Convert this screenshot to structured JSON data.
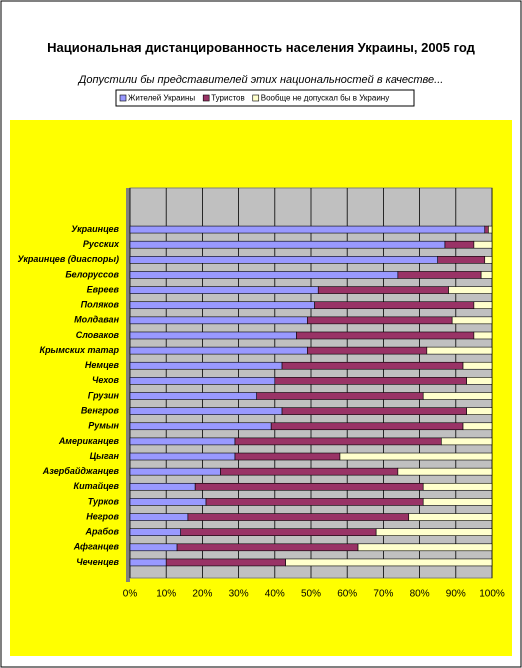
{
  "chart_data": {
    "type": "stacked-bar-horizontal-100",
    "title": "Национальная дистанцированность населения Украины, 2005 год",
    "subtitle": "Допустили бы представителей этих национальностей в качестве...",
    "categories": [
      "Украинцев",
      "Русских",
      "Украинцев (диаспоры)",
      "Белоруссов",
      "Евреев",
      "Поляков",
      "Молдаван",
      "Словаков",
      "Крымских татар",
      "Немцев",
      "Чехов",
      "Грузин",
      "Венгров",
      "Румын",
      "Американцев",
      "Цыган",
      "Азербайджанцев",
      "Китайцев",
      "Турков",
      "Негров",
      "Арабов",
      "Афганцев",
      "Чеченцев"
    ],
    "series": [
      {
        "name": "Жителей Украины",
        "color": "#9999ff",
        "values": [
          98,
          87,
          85,
          74,
          52,
          51,
          49,
          46,
          49,
          42,
          40,
          35,
          42,
          39,
          29,
          29,
          25,
          18,
          21,
          16,
          14,
          13,
          10
        ]
      },
      {
        "name": "Туристов",
        "color": "#993366",
        "values": [
          1,
          8,
          13,
          23,
          36,
          44,
          40,
          49,
          33,
          50,
          53,
          46,
          51,
          53,
          57,
          29,
          49,
          63,
          60,
          61,
          54,
          50,
          33
        ]
      },
      {
        "name": "Вообще не допускал бы в Украину",
        "color": "#ffffcc",
        "values": [
          1,
          5,
          2,
          3,
          12,
          5,
          11,
          5,
          18,
          8,
          7,
          19,
          7,
          8,
          14,
          42,
          26,
          19,
          19,
          23,
          32,
          37,
          57
        ]
      }
    ],
    "xlim": [
      0,
      100
    ],
    "xticks": [
      {
        "value": 0,
        "label": "0%"
      },
      {
        "value": 10,
        "label": "10%"
      },
      {
        "value": 20,
        "label": "20%"
      },
      {
        "value": 30,
        "label": "30%"
      },
      {
        "value": 40,
        "label": "40%"
      },
      {
        "value": 50,
        "label": "50%"
      },
      {
        "value": 60,
        "label": "60%"
      },
      {
        "value": 70,
        "label": "70%"
      },
      {
        "value": 80,
        "label": "80%"
      },
      {
        "value": 90,
        "label": "90%"
      },
      {
        "value": 100,
        "label": "100%"
      }
    ],
    "grid": true,
    "legend": "top"
  }
}
